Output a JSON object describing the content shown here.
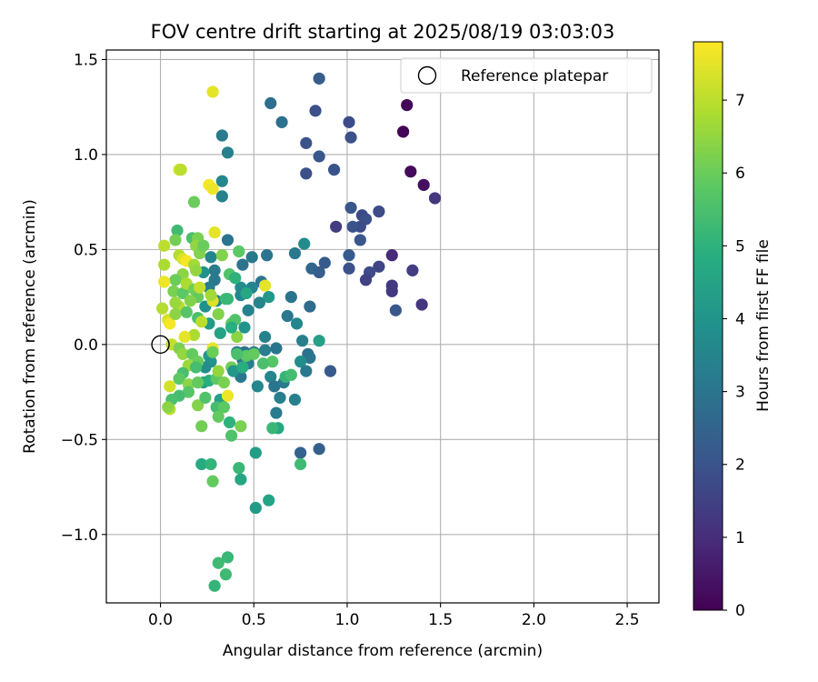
{
  "chart_data": {
    "type": "scatter",
    "title": "FOV centre drift starting at 2025/08/19 03:03:03",
    "xlabel": "Angular distance from reference (arcmin)",
    "ylabel": "Rotation from reference (arcmin)",
    "xlim": [
      -0.29,
      2.67
    ],
    "ylim": [
      -1.36,
      1.55
    ],
    "xticks": [
      "0.0",
      "0.5",
      "1.0",
      "1.5",
      "2.0",
      "2.5"
    ],
    "yticks": [
      "1.5",
      "1.0",
      "0.5",
      "0.0",
      "−0.5",
      "−1.0"
    ],
    "grid": true,
    "legend": {
      "position": "top-right",
      "entries": [
        {
          "label": "Reference platepar",
          "marker": "open-circle"
        }
      ]
    },
    "reference": {
      "x": 0.0,
      "y": 0.0
    },
    "colorbar": {
      "label": "Hours from first FF file",
      "range": [
        0,
        7.8
      ],
      "ticks": [
        "0",
        "1",
        "2",
        "3",
        "4",
        "5",
        "6",
        "7"
      ],
      "colormap": "viridis"
    },
    "points": [
      {
        "x": 1.32,
        "y": 1.26,
        "h": 0.1
      },
      {
        "x": 1.3,
        "y": 1.12,
        "h": 0.1
      },
      {
        "x": 1.34,
        "y": 0.91,
        "h": 0.2
      },
      {
        "x": 1.41,
        "y": 0.84,
        "h": 0.3
      },
      {
        "x": 1.47,
        "y": 0.77,
        "h": 1.2
      },
      {
        "x": 1.24,
        "y": 0.47,
        "h": 0.9
      },
      {
        "x": 1.35,
        "y": 0.39,
        "h": 1.4
      },
      {
        "x": 1.24,
        "y": 0.31,
        "h": 1.3
      },
      {
        "x": 1.24,
        "y": 0.28,
        "h": 1.3
      },
      {
        "x": 1.26,
        "y": 0.18,
        "h": 2.1
      },
      {
        "x": 1.4,
        "y": 0.21,
        "h": 1.2
      },
      {
        "x": 1.17,
        "y": 0.41,
        "h": 1.6
      },
      {
        "x": 1.12,
        "y": 0.38,
        "h": 1.8
      },
      {
        "x": 1.1,
        "y": 0.34,
        "h": 1.5
      },
      {
        "x": 1.17,
        "y": 0.7,
        "h": 1.8
      },
      {
        "x": 1.08,
        "y": 0.68,
        "h": 1.7
      },
      {
        "x": 1.1,
        "y": 0.66,
        "h": 1.9
      },
      {
        "x": 1.07,
        "y": 0.62,
        "h": 1.8
      },
      {
        "x": 1.03,
        "y": 0.62,
        "h": 2.0
      },
      {
        "x": 1.02,
        "y": 0.72,
        "h": 2.1
      },
      {
        "x": 1.07,
        "y": 0.55,
        "h": 2.1
      },
      {
        "x": 0.94,
        "y": 0.62,
        "h": 1.4
      },
      {
        "x": 1.01,
        "y": 0.47,
        "h": 2.2
      },
      {
        "x": 1.01,
        "y": 0.4,
        "h": 1.9
      },
      {
        "x": 0.85,
        "y": 1.4,
        "h": 2.3
      },
      {
        "x": 0.83,
        "y": 1.23,
        "h": 1.9
      },
      {
        "x": 1.01,
        "y": 1.17,
        "h": 1.8
      },
      {
        "x": 1.02,
        "y": 1.09,
        "h": 1.9
      },
      {
        "x": 0.78,
        "y": 1.06,
        "h": 2.0
      },
      {
        "x": 0.85,
        "y": 0.99,
        "h": 2.1
      },
      {
        "x": 0.93,
        "y": 0.92,
        "h": 2.0
      },
      {
        "x": 0.78,
        "y": 0.9,
        "h": 1.9
      },
      {
        "x": 0.59,
        "y": 1.27,
        "h": 2.8
      },
      {
        "x": 0.65,
        "y": 1.17,
        "h": 2.9
      },
      {
        "x": 0.33,
        "y": 1.1,
        "h": 3.2
      },
      {
        "x": 0.36,
        "y": 1.01,
        "h": 3.4
      },
      {
        "x": 0.33,
        "y": 0.86,
        "h": 3.6
      },
      {
        "x": 0.33,
        "y": 0.78,
        "h": 3.4
      },
      {
        "x": 0.77,
        "y": 0.53,
        "h": 3.7
      },
      {
        "x": 0.72,
        "y": 0.48,
        "h": 3.1
      },
      {
        "x": 0.81,
        "y": 0.4,
        "h": 2.6
      },
      {
        "x": 0.85,
        "y": 0.38,
        "h": 2.3
      },
      {
        "x": 0.88,
        "y": 0.43,
        "h": 2.2
      },
      {
        "x": 0.8,
        "y": 0.2,
        "h": 2.7
      },
      {
        "x": 0.7,
        "y": 0.25,
        "h": 3.0
      },
      {
        "x": 0.68,
        "y": 0.15,
        "h": 3.1
      },
      {
        "x": 0.73,
        "y": 0.11,
        "h": 3.6
      },
      {
        "x": 0.76,
        "y": 0.02,
        "h": 3.3
      },
      {
        "x": 0.85,
        "y": 0.02,
        "h": 4.4
      },
      {
        "x": 0.79,
        "y": -0.05,
        "h": 2.9
      },
      {
        "x": 0.8,
        "y": -0.07,
        "h": 3.0
      },
      {
        "x": 0.75,
        "y": -0.09,
        "h": 3.8
      },
      {
        "x": 0.78,
        "y": -0.14,
        "h": 3.1
      },
      {
        "x": 0.91,
        "y": -0.14,
        "h": 2.2
      },
      {
        "x": 0.72,
        "y": -0.29,
        "h": 3.4
      },
      {
        "x": 0.75,
        "y": -0.57,
        "h": 2.5
      },
      {
        "x": 0.85,
        "y": -0.55,
        "h": 2.4
      },
      {
        "x": 0.75,
        "y": -0.63,
        "h": 5.3
      },
      {
        "x": 0.57,
        "y": 0.47,
        "h": 3.0
      },
      {
        "x": 0.49,
        "y": 0.46,
        "h": 3.1
      },
      {
        "x": 0.44,
        "y": 0.42,
        "h": 3.0
      },
      {
        "x": 0.54,
        "y": 0.33,
        "h": 3.0
      },
      {
        "x": 0.49,
        "y": 0.3,
        "h": 3.5
      },
      {
        "x": 0.43,
        "y": 0.3,
        "h": 3.7
      },
      {
        "x": 0.43,
        "y": 0.26,
        "h": 3.6
      },
      {
        "x": 0.53,
        "y": 0.22,
        "h": 3.5
      },
      {
        "x": 0.47,
        "y": 0.18,
        "h": 3.4
      },
      {
        "x": 0.58,
        "y": 0.25,
        "h": 4.1
      },
      {
        "x": 0.56,
        "y": 0.04,
        "h": 3.4
      },
      {
        "x": 0.56,
        "y": -0.03,
        "h": 3.3
      },
      {
        "x": 0.5,
        "y": -0.04,
        "h": 3.2
      },
      {
        "x": 0.45,
        "y": -0.04,
        "h": 3.0
      },
      {
        "x": 0.44,
        "y": -0.08,
        "h": 3.1
      },
      {
        "x": 0.41,
        "y": -0.04,
        "h": 3.2
      },
      {
        "x": 0.47,
        "y": -0.1,
        "h": 3.3
      },
      {
        "x": 0.43,
        "y": -0.17,
        "h": 3.1
      },
      {
        "x": 0.52,
        "y": -0.22,
        "h": 3.6
      },
      {
        "x": 0.59,
        "y": -0.17,
        "h": 3.5
      },
      {
        "x": 0.61,
        "y": -0.22,
        "h": 3.0
      },
      {
        "x": 0.66,
        "y": -0.2,
        "h": 3.2
      },
      {
        "x": 0.64,
        "y": -0.28,
        "h": 3.3
      },
      {
        "x": 0.62,
        "y": -0.36,
        "h": 3.2
      },
      {
        "x": 0.63,
        "y": -0.44,
        "h": 4.6
      },
      {
        "x": 0.6,
        "y": -0.44,
        "h": 5.2
      },
      {
        "x": 0.51,
        "y": -0.57,
        "h": 4.3
      },
      {
        "x": 0.51,
        "y": -0.86,
        "h": 4.2
      },
      {
        "x": 0.58,
        "y": -0.82,
        "h": 4.5
      },
      {
        "x": 0.62,
        "y": -0.02,
        "h": 3.0
      },
      {
        "x": 0.6,
        "y": -0.09,
        "h": 5.7
      },
      {
        "x": 0.55,
        "y": -0.1,
        "h": 5.5
      },
      {
        "x": 0.67,
        "y": -0.17,
        "h": 5.1
      },
      {
        "x": 0.7,
        "y": -0.16,
        "h": 5.4
      },
      {
        "x": 0.36,
        "y": 0.55,
        "h": 3.0
      },
      {
        "x": 0.27,
        "y": 0.46,
        "h": 3.6
      },
      {
        "x": 0.29,
        "y": 0.39,
        "h": 3.2
      },
      {
        "x": 0.29,
        "y": 0.34,
        "h": 3.1
      },
      {
        "x": 0.26,
        "y": 0.3,
        "h": 3.3
      },
      {
        "x": 0.23,
        "y": 0.38,
        "h": 3.9
      },
      {
        "x": 0.3,
        "y": 0.23,
        "h": 3.6
      },
      {
        "x": 0.24,
        "y": 0.2,
        "h": 3.9
      },
      {
        "x": 0.26,
        "y": 0.11,
        "h": 4.2
      },
      {
        "x": 0.32,
        "y": 0.06,
        "h": 4.5
      },
      {
        "x": 0.26,
        "y": -0.06,
        "h": 4.1
      },
      {
        "x": 0.27,
        "y": -0.09,
        "h": 4.0
      },
      {
        "x": 0.24,
        "y": -0.12,
        "h": 3.8
      },
      {
        "x": 0.23,
        "y": -0.2,
        "h": 4.4
      },
      {
        "x": 0.26,
        "y": -0.19,
        "h": 4.9
      },
      {
        "x": 0.3,
        "y": -0.18,
        "h": 5.8
      },
      {
        "x": 0.32,
        "y": -0.29,
        "h": 4.4
      },
      {
        "x": 0.3,
        "y": -0.33,
        "h": 5.4
      },
      {
        "x": 0.31,
        "y": -0.38,
        "h": 5.9
      },
      {
        "x": 0.37,
        "y": -0.41,
        "h": 5.0
      },
      {
        "x": 0.38,
        "y": -0.48,
        "h": 5.6
      },
      {
        "x": 0.43,
        "y": -0.43,
        "h": 6.2
      },
      {
        "x": 0.22,
        "y": -0.63,
        "h": 4.7
      },
      {
        "x": 0.27,
        "y": -0.63,
        "h": 5.1
      },
      {
        "x": 0.28,
        "y": -0.72,
        "h": 5.9
      },
      {
        "x": 0.42,
        "y": -0.65,
        "h": 5.2
      },
      {
        "x": 0.43,
        "y": -0.71,
        "h": 4.6
      },
      {
        "x": 0.31,
        "y": -1.15,
        "h": 5.3
      },
      {
        "x": 0.36,
        "y": -1.12,
        "h": 5.2
      },
      {
        "x": 0.35,
        "y": -1.21,
        "h": 5.3
      },
      {
        "x": 0.29,
        "y": -1.27,
        "h": 5.1
      },
      {
        "x": 0.42,
        "y": 0.49,
        "h": 5.8
      },
      {
        "x": 0.33,
        "y": 0.47,
        "h": 6.3
      },
      {
        "x": 0.37,
        "y": 0.37,
        "h": 5.6
      },
      {
        "x": 0.35,
        "y": 0.24,
        "h": 5.3
      },
      {
        "x": 0.38,
        "y": 0.11,
        "h": 5.9
      },
      {
        "x": 0.41,
        "y": 0.04,
        "h": 6.4
      },
      {
        "x": 0.38,
        "y": -0.12,
        "h": 6.1
      },
      {
        "x": 0.46,
        "y": -0.06,
        "h": 5.8
      },
      {
        "x": 0.5,
        "y": -0.05,
        "h": 5.9
      },
      {
        "x": 0.41,
        "y": -0.05,
        "h": 5.5
      },
      {
        "x": 0.36,
        "y": -0.27,
        "h": 7.6
      },
      {
        "x": 0.28,
        "y": -0.02,
        "h": 7.5
      },
      {
        "x": 0.28,
        "y": 0.23,
        "h": 7.4
      },
      {
        "x": 0.29,
        "y": 0.59,
        "h": 7.5
      },
      {
        "x": 0.26,
        "y": 0.84,
        "h": 7.7
      },
      {
        "x": 0.28,
        "y": 0.82,
        "h": 7.6
      },
      {
        "x": 0.28,
        "y": 1.33,
        "h": 7.5
      },
      {
        "x": 0.1,
        "y": 0.92,
        "h": 7.3
      },
      {
        "x": 0.11,
        "y": 0.92,
        "h": 7.0
      },
      {
        "x": 0.18,
        "y": 0.75,
        "h": 6.0
      },
      {
        "x": 0.09,
        "y": 0.6,
        "h": 5.3
      },
      {
        "x": 0.17,
        "y": 0.56,
        "h": 5.5
      },
      {
        "x": 0.2,
        "y": 0.56,
        "h": 6.2
      },
      {
        "x": 0.19,
        "y": 0.52,
        "h": 6.5
      },
      {
        "x": 0.08,
        "y": 0.55,
        "h": 6.1
      },
      {
        "x": 0.02,
        "y": 0.52,
        "h": 7.0
      },
      {
        "x": 0.02,
        "y": 0.42,
        "h": 6.8
      },
      {
        "x": 0.1,
        "y": 0.47,
        "h": 6.9
      },
      {
        "x": 0.12,
        "y": 0.45,
        "h": 7.4
      },
      {
        "x": 0.14,
        "y": 0.44,
        "h": 7.7
      },
      {
        "x": 0.18,
        "y": 0.42,
        "h": 6.7
      },
      {
        "x": 0.21,
        "y": 0.48,
        "h": 6.3
      },
      {
        "x": 0.23,
        "y": 0.52,
        "h": 6.0
      },
      {
        "x": 0.19,
        "y": 0.39,
        "h": 6.5
      },
      {
        "x": 0.12,
        "y": 0.37,
        "h": 6.4
      },
      {
        "x": 0.08,
        "y": 0.34,
        "h": 6.0
      },
      {
        "x": 0.02,
        "y": 0.33,
        "h": 7.6
      },
      {
        "x": 0.07,
        "y": 0.28,
        "h": 6.2
      },
      {
        "x": 0.12,
        "y": 0.27,
        "h": 5.8
      },
      {
        "x": 0.14,
        "y": 0.32,
        "h": 6.8
      },
      {
        "x": 0.18,
        "y": 0.29,
        "h": 6.1
      },
      {
        "x": 0.2,
        "y": 0.25,
        "h": 5.9
      },
      {
        "x": 0.1,
        "y": 0.2,
        "h": 7.0
      },
      {
        "x": 0.08,
        "y": 0.22,
        "h": 6.6
      },
      {
        "x": 0.01,
        "y": 0.19,
        "h": 6.9
      },
      {
        "x": 0.04,
        "y": 0.13,
        "h": 7.3
      },
      {
        "x": 0.05,
        "y": 0.11,
        "h": 7.7
      },
      {
        "x": 0.08,
        "y": 0.16,
        "h": 6.4
      },
      {
        "x": 0.14,
        "y": 0.17,
        "h": 5.7
      },
      {
        "x": 0.2,
        "y": 0.14,
        "h": 5.5
      },
      {
        "x": 0.22,
        "y": 0.12,
        "h": 7.0
      },
      {
        "x": 0.18,
        "y": 0.05,
        "h": 6.8
      },
      {
        "x": 0.13,
        "y": 0.04,
        "h": 7.5
      },
      {
        "x": 0.06,
        "y": 0.0,
        "h": 7.1
      },
      {
        "x": 0.1,
        "y": -0.02,
        "h": 6.2
      },
      {
        "x": 0.12,
        "y": -0.05,
        "h": 6.5
      },
      {
        "x": 0.17,
        "y": -0.05,
        "h": 5.9
      },
      {
        "x": 0.2,
        "y": -0.09,
        "h": 6.0
      },
      {
        "x": 0.15,
        "y": -0.11,
        "h": 6.6
      },
      {
        "x": 0.19,
        "y": -0.12,
        "h": 5.4
      },
      {
        "x": 0.12,
        "y": -0.15,
        "h": 5.5
      },
      {
        "x": 0.1,
        "y": -0.18,
        "h": 5.8
      },
      {
        "x": 0.05,
        "y": -0.22,
        "h": 7.3
      },
      {
        "x": 0.15,
        "y": -0.21,
        "h": 6.4
      },
      {
        "x": 0.2,
        "y": -0.2,
        "h": 5.9
      },
      {
        "x": 0.15,
        "y": -0.25,
        "h": 5.7
      },
      {
        "x": 0.1,
        "y": -0.27,
        "h": 5.4
      },
      {
        "x": 0.06,
        "y": -0.29,
        "h": 5.5
      },
      {
        "x": 0.05,
        "y": -0.34,
        "h": 7.0
      },
      {
        "x": 0.04,
        "y": -0.33,
        "h": 6.4
      },
      {
        "x": 0.2,
        "y": -0.32,
        "h": 6.3
      },
      {
        "x": 0.22,
        "y": -0.43,
        "h": 6.1
      },
      {
        "x": 0.24,
        "y": -0.28,
        "h": 5.6
      },
      {
        "x": 0.34,
        "y": -0.33,
        "h": 5.8
      },
      {
        "x": 0.34,
        "y": -0.2,
        "h": 6.2
      },
      {
        "x": 0.31,
        "y": -0.14,
        "h": 6.5
      },
      {
        "x": 0.28,
        "y": -0.04,
        "h": 6.0
      },
      {
        "x": 0.31,
        "y": 0.16,
        "h": 6.3
      },
      {
        "x": 0.36,
        "y": 0.24,
        "h": 5.2
      },
      {
        "x": 0.4,
        "y": 0.13,
        "h": 5.6
      },
      {
        "x": 0.27,
        "y": 0.26,
        "h": 6.7
      },
      {
        "x": 0.56,
        "y": 0.31,
        "h": 7.5
      },
      {
        "x": 0.21,
        "y": 0.3,
        "h": 7.1
      },
      {
        "x": 0.16,
        "y": 0.23,
        "h": 6.3
      },
      {
        "x": 0.4,
        "y": 0.35,
        "h": 5.0
      },
      {
        "x": 0.46,
        "y": 0.27,
        "h": 4.6
      },
      {
        "x": 0.38,
        "y": 0.09,
        "h": 4.9
      },
      {
        "x": 0.45,
        "y": 0.09,
        "h": 4.0
      },
      {
        "x": 0.39,
        "y": -0.14,
        "h": 4.1
      },
      {
        "x": 0.44,
        "y": -0.12,
        "h": 4.9
      }
    ]
  }
}
